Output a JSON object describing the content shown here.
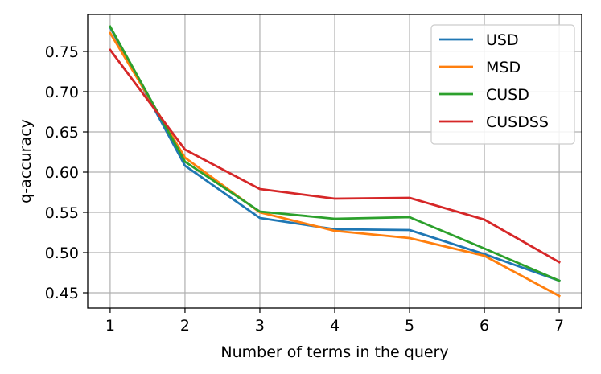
{
  "chart_data": {
    "type": "line",
    "title": "",
    "xlabel": "Number of terms in the query",
    "ylabel": "q-accuracy",
    "x": [
      1,
      2,
      3,
      4,
      5,
      6,
      7
    ],
    "x_ticks": [
      "1",
      "2",
      "3",
      "4",
      "5",
      "6",
      "7"
    ],
    "y_ticks": [
      "0.45",
      "0.50",
      "0.55",
      "0.60",
      "0.65",
      "0.70",
      "0.75"
    ],
    "y_tick_values": [
      0.45,
      0.5,
      0.55,
      0.6,
      0.65,
      0.7,
      0.75
    ],
    "xlim": [
      0.7,
      7.3
    ],
    "ylim": [
      0.431,
      0.796
    ],
    "grid": true,
    "legend_position": "top-right",
    "series": [
      {
        "name": "USD",
        "color": "#1f77b4",
        "values": [
          0.78,
          0.608,
          0.543,
          0.529,
          0.528,
          0.498,
          0.465
        ]
      },
      {
        "name": "MSD",
        "color": "#ff7f0e",
        "values": [
          0.773,
          0.618,
          0.55,
          0.527,
          0.518,
          0.496,
          0.446
        ]
      },
      {
        "name": "CUSD",
        "color": "#2ca02c",
        "values": [
          0.781,
          0.613,
          0.551,
          0.542,
          0.544,
          0.505,
          0.465
        ]
      },
      {
        "name": "CUSDSS",
        "color": "#d62728",
        "values": [
          0.752,
          0.628,
          0.579,
          0.567,
          0.568,
          0.541,
          0.488
        ]
      }
    ]
  }
}
